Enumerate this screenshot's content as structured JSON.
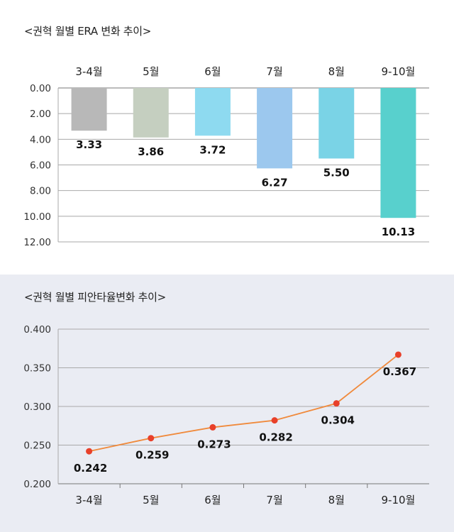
{
  "chart_data": [
    {
      "type": "bar",
      "title": "<권혁 월별 ERA 변화 추이>",
      "categories": [
        "3-4월",
        "5월",
        "6월",
        "7월",
        "8월",
        "9-10월"
      ],
      "values": [
        3.33,
        3.86,
        3.72,
        6.27,
        5.5,
        10.13
      ],
      "value_labels": [
        "3.33",
        "3.86",
        "3.72",
        "6.27",
        "5.50",
        "10.13"
      ],
      "y_ticks": [
        "0.00",
        "2.00",
        "4.00",
        "6.00",
        "8.00",
        "10.00",
        "12.00"
      ],
      "ylim": [
        0,
        12
      ],
      "y_inverted": true,
      "grid": true,
      "colors": [
        "#b8b8b8",
        "#c5cfc0",
        "#8edaf0",
        "#9cc8ee",
        "#7ad3e6",
        "#58d0cd"
      ]
    },
    {
      "type": "line",
      "title": "<권혁 월별 피안타율변화 추이>",
      "categories": [
        "3-4월",
        "5월",
        "6월",
        "7월",
        "8월",
        "9-10월"
      ],
      "values": [
        0.242,
        0.259,
        0.273,
        0.282,
        0.304,
        0.367
      ],
      "value_labels": [
        "0.242",
        "0.259",
        "0.273",
        "0.282",
        "0.304",
        "0.367"
      ],
      "y_ticks": [
        "0.200",
        "0.250",
        "0.300",
        "0.350",
        "0.400"
      ],
      "ylim": [
        0.2,
        0.4
      ],
      "grid": true,
      "line_color": "#f08a3c",
      "marker_color": "#e8402a"
    }
  ]
}
